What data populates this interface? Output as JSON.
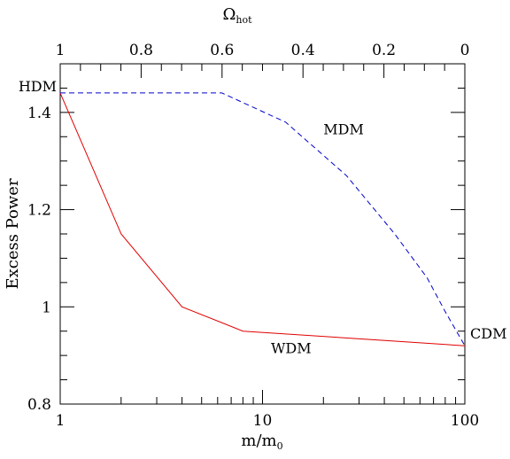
{
  "chart_data": {
    "type": "line",
    "xlabel": "m/m",
    "xlabel_sub": "0",
    "ylabel": "Excess Power",
    "top_label": "Ω",
    "top_label_sub": "hot",
    "xscale": "log",
    "xlim": [
      1,
      100
    ],
    "ylim": [
      0.8,
      1.5
    ],
    "x_ticks": [
      {
        "value": 1,
        "label": "1"
      },
      {
        "value": 10,
        "label": "10"
      },
      {
        "value": 100,
        "label": "100"
      }
    ],
    "y_ticks": [
      {
        "value": 0.8,
        "label": "0.8"
      },
      {
        "value": 1.0,
        "label": "1"
      },
      {
        "value": 1.2,
        "label": "1.2"
      },
      {
        "value": 1.4,
        "label": "1.4"
      }
    ],
    "top_axis": {
      "range": [
        1,
        0
      ],
      "ticks": [
        {
          "value": 1,
          "label": "1"
        },
        {
          "value": 0.8,
          "label": "0.8"
        },
        {
          "value": 0.6,
          "label": "0.6"
        },
        {
          "value": 0.4,
          "label": "0.4"
        },
        {
          "value": 0.2,
          "label": "0.2"
        },
        {
          "value": 0,
          "label": "0"
        }
      ]
    },
    "series": [
      {
        "name": "WDM",
        "color": "#e00000",
        "style": "solid",
        "points": [
          [
            1,
            1.44
          ],
          [
            2,
            1.15
          ],
          [
            4,
            1.0
          ],
          [
            8,
            0.95
          ],
          [
            100,
            0.92
          ]
        ]
      },
      {
        "name": "MDM",
        "color": "#0000cc",
        "style": "dashed",
        "bottom_x_points": [
          [
            1,
            1.44
          ],
          [
            6.3,
            1.44
          ],
          [
            13,
            1.38
          ],
          [
            26,
            1.27
          ],
          [
            45,
            1.15
          ],
          [
            65,
            1.06
          ],
          [
            80,
            0.99
          ],
          [
            100,
            0.92
          ]
        ]
      }
    ],
    "annotations": [
      {
        "text": "HDM",
        "x": 1,
        "y": 1.44
      },
      {
        "text": "CDM",
        "x": 100,
        "y": 0.92
      },
      {
        "text": "MDM",
        "x": 20,
        "y": 1.355,
        "color": "#0000cc"
      },
      {
        "text": "WDM",
        "x": 11,
        "y": 0.905,
        "color": "#e00000"
      }
    ],
    "grid": false
  }
}
